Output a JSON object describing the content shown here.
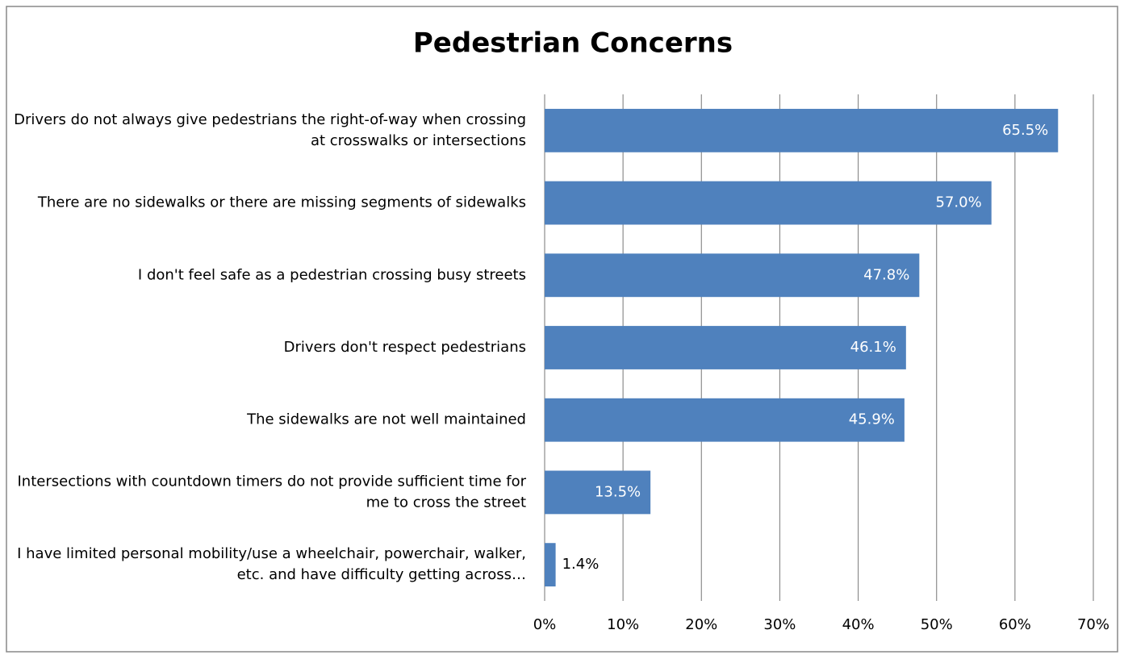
{
  "chart_data": {
    "type": "bar",
    "orientation": "horizontal",
    "title": "Pedestrian Concerns",
    "categories": [
      "Drivers do not always give pedestrians the right-of-way when crossing at crosswalks or intersections",
      "There are no sidewalks or there are missing segments of sidewalks",
      "I don't feel safe as a pedestrian crossing busy streets",
      "Drivers don't respect pedestrians",
      "The sidewalks are not well maintained",
      "Intersections with countdown timers do not provide sufficient time for me to cross the street",
      "I have limited personal mobility/use a wheelchair, powerchair, walker, etc. and have difficulty getting across…"
    ],
    "values": [
      65.5,
      57.0,
      47.8,
      46.1,
      45.9,
      13.5,
      1.4
    ],
    "value_labels": [
      "65.5%",
      "57.0%",
      "47.8%",
      "46.1%",
      "45.9%",
      "13.5%",
      "1.4%"
    ],
    "color": "#4f81bd",
    "xlim": [
      0,
      70
    ],
    "xticks": [
      {
        "value": 0,
        "label": "0%"
      },
      {
        "value": 10,
        "label": "10%"
      },
      {
        "value": 20,
        "label": "20%"
      },
      {
        "value": 30,
        "label": "30%"
      },
      {
        "value": 40,
        "label": "40%"
      },
      {
        "value": 50,
        "label": "50%"
      },
      {
        "value": 60,
        "label": "60%"
      },
      {
        "value": 70,
        "label": "70%"
      }
    ],
    "grid": true
  }
}
